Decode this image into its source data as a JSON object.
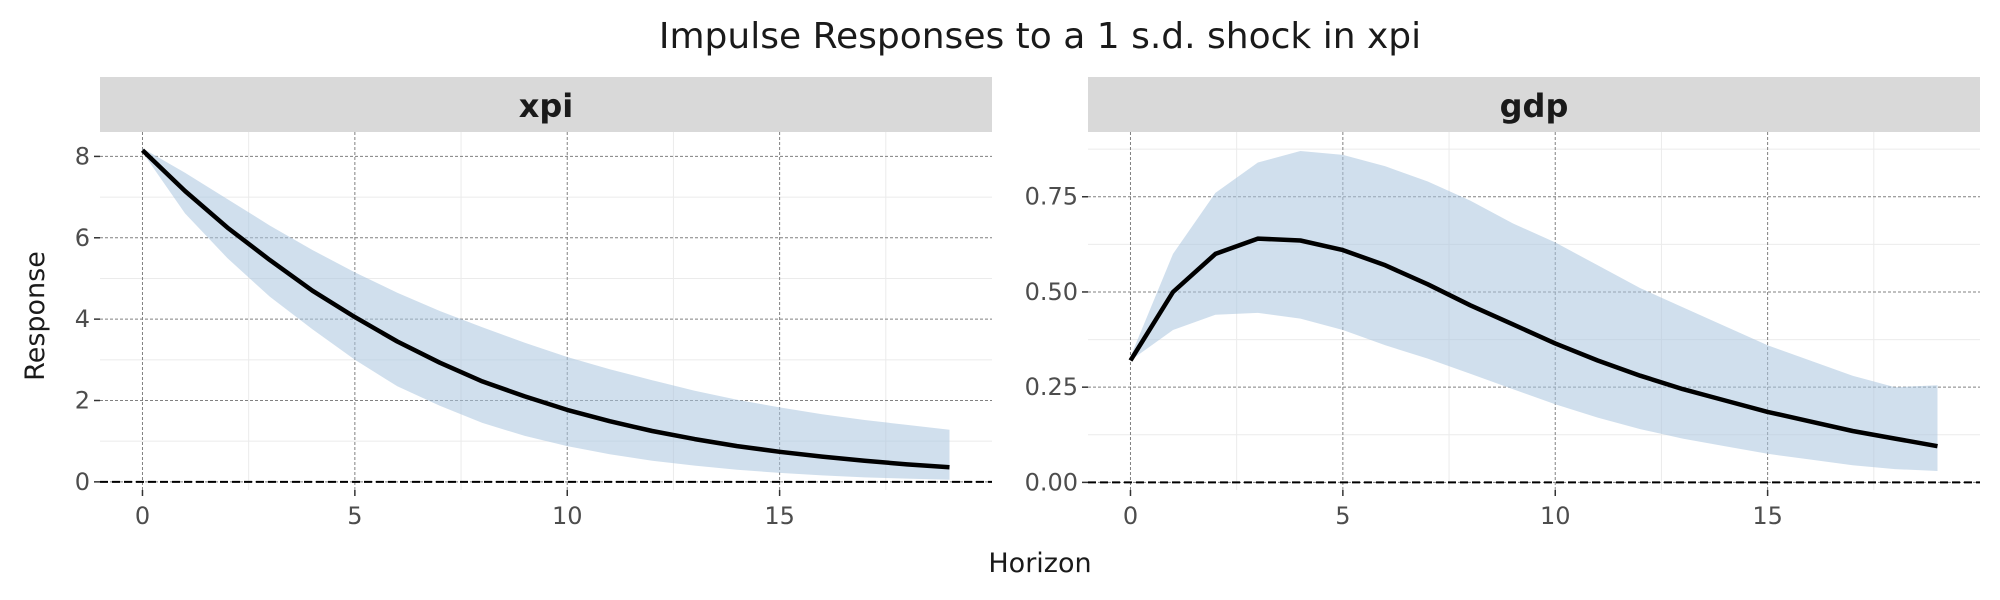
{
  "chart_data": {
    "type": "line",
    "title": "Impulse Responses to a 1 s.d. shock in xpi",
    "xlabel": "Horizon",
    "ylabel": "Response",
    "grid": true,
    "colors": {
      "line": "#000000",
      "band": "#a9c4df",
      "strip": "#d9d9d9",
      "zero_line": "#000000"
    },
    "panels": [
      {
        "name": "xpi",
        "xlim": [
          -1,
          20
        ],
        "ylim": [
          -0.2,
          8.6
        ],
        "xticks": [
          0,
          5,
          10,
          15
        ],
        "yticks": [
          0,
          2,
          4,
          6,
          8
        ],
        "ytick_labels": [
          "0",
          "2",
          "4",
          "6",
          "8"
        ],
        "x": [
          0,
          1,
          2,
          3,
          4,
          5,
          6,
          7,
          8,
          9,
          10,
          11,
          12,
          13,
          14,
          15,
          16,
          17,
          18,
          19
        ],
        "response": [
          8.15,
          7.15,
          6.25,
          5.45,
          4.7,
          4.05,
          3.45,
          2.93,
          2.47,
          2.1,
          1.77,
          1.49,
          1.25,
          1.05,
          0.88,
          0.74,
          0.62,
          0.52,
          0.43,
          0.36
        ],
        "lower": [
          8.1,
          6.6,
          5.5,
          4.55,
          3.75,
          3.0,
          2.35,
          1.87,
          1.45,
          1.13,
          0.88,
          0.68,
          0.52,
          0.4,
          0.3,
          0.22,
          0.16,
          0.11,
          0.08,
          0.05
        ],
        "upper": [
          8.2,
          7.6,
          6.95,
          6.3,
          5.7,
          5.15,
          4.65,
          4.2,
          3.8,
          3.42,
          3.07,
          2.77,
          2.5,
          2.24,
          2.02,
          1.83,
          1.66,
          1.52,
          1.4,
          1.28
        ]
      },
      {
        "name": "gdp",
        "xlim": [
          -1,
          20
        ],
        "ylim": [
          -0.02,
          0.92
        ],
        "xticks": [
          0,
          5,
          10,
          15
        ],
        "yticks": [
          0,
          0.25,
          0.5,
          0.75
        ],
        "ytick_labels": [
          "0.00",
          "0.25",
          "0.50",
          "0.75"
        ],
        "x": [
          0,
          1,
          2,
          3,
          4,
          5,
          6,
          7,
          8,
          9,
          10,
          11,
          12,
          13,
          14,
          15,
          16,
          17,
          18,
          19
        ],
        "response": [
          0.32,
          0.5,
          0.6,
          0.64,
          0.635,
          0.61,
          0.57,
          0.52,
          0.465,
          0.415,
          0.365,
          0.32,
          0.28,
          0.245,
          0.215,
          0.185,
          0.16,
          0.135,
          0.115,
          0.095
        ],
        "lower": [
          0.32,
          0.4,
          0.44,
          0.445,
          0.43,
          0.4,
          0.36,
          0.325,
          0.285,
          0.245,
          0.205,
          0.17,
          0.14,
          0.115,
          0.095,
          0.075,
          0.06,
          0.045,
          0.035,
          0.03
        ],
        "upper": [
          0.33,
          0.6,
          0.76,
          0.84,
          0.87,
          0.86,
          0.83,
          0.79,
          0.74,
          0.68,
          0.63,
          0.57,
          0.51,
          0.46,
          0.41,
          0.36,
          0.32,
          0.28,
          0.25,
          0.255
        ]
      }
    ]
  }
}
